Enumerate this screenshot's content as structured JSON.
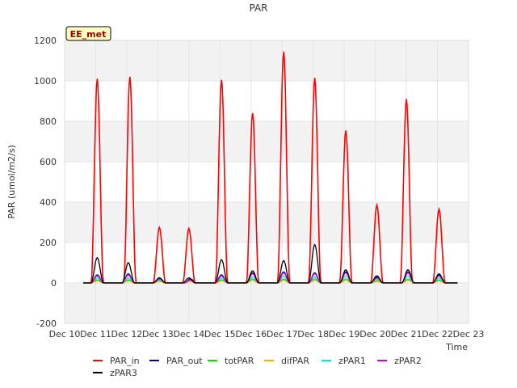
{
  "chart_data": {
    "type": "line",
    "title": "PAR",
    "xlabel": "Time",
    "ylabel": "PAR (umol/m2/s)",
    "annotation": "EE_met",
    "xlim": [
      10,
      23
    ],
    "ylim": [
      -200,
      1200
    ],
    "x_ticks": [
      {
        "value": 10,
        "label": "Dec 10"
      },
      {
        "value": 11,
        "label": "Dec 11"
      },
      {
        "value": 12,
        "label": "Dec 12"
      },
      {
        "value": 13,
        "label": "Dec 13"
      },
      {
        "value": 14,
        "label": "Dec 14"
      },
      {
        "value": 15,
        "label": "Dec 15"
      },
      {
        "value": 16,
        "label": "Dec 16"
      },
      {
        "value": 17,
        "label": "Dec 17"
      },
      {
        "value": 18,
        "label": "Dec 18"
      },
      {
        "value": 19,
        "label": "Dec 19"
      },
      {
        "value": 20,
        "label": "Dec 20"
      },
      {
        "value": 21,
        "label": "Dec 21"
      },
      {
        "value": 22,
        "label": "Dec 22"
      },
      {
        "value": 23,
        "label": "Dec 23"
      }
    ],
    "y_ticks": [
      {
        "value": -200,
        "label": "-200"
      },
      {
        "value": 0,
        "label": "0"
      },
      {
        "value": 200,
        "label": "200"
      },
      {
        "value": 400,
        "label": "400"
      },
      {
        "value": 600,
        "label": "600"
      },
      {
        "value": 800,
        "label": "800"
      },
      {
        "value": 1000,
        "label": "1000"
      },
      {
        "value": 1200,
        "label": "1200"
      }
    ],
    "background_bands": [
      [
        -200,
        0
      ],
      [
        200,
        400
      ],
      [
        600,
        800
      ],
      [
        1000,
        1200
      ]
    ],
    "legend_position": "bottom",
    "series": [
      {
        "name": "PAR_in",
        "color": "#ff0000",
        "peaks": [
          [
            11.05,
            1010
          ],
          [
            12.1,
            1020
          ],
          [
            13.05,
            275
          ],
          [
            14.0,
            270
          ],
          [
            15.05,
            1005
          ],
          [
            16.05,
            840
          ],
          [
            17.05,
            1145
          ],
          [
            18.05,
            1015
          ],
          [
            19.05,
            755
          ],
          [
            20.05,
            385
          ],
          [
            21.0,
            910
          ],
          [
            22.05,
            365
          ]
        ]
      },
      {
        "name": "PAR_out",
        "color": "#00008b",
        "peaks": [
          [
            11.05,
            40
          ],
          [
            12.05,
            45
          ],
          [
            13.05,
            25
          ],
          [
            14.05,
            20
          ],
          [
            15.05,
            40
          ],
          [
            16.05,
            50
          ],
          [
            17.05,
            55
          ],
          [
            18.05,
            50
          ],
          [
            19.05,
            55
          ],
          [
            20.05,
            30
          ],
          [
            21.05,
            55
          ],
          [
            22.05,
            40
          ]
        ]
      },
      {
        "name": "totPAR",
        "color": "#00dd00",
        "peaks": [
          [
            11.05,
            15
          ],
          [
            12.05,
            15
          ],
          [
            13.05,
            10
          ],
          [
            14.05,
            10
          ],
          [
            15.05,
            15
          ],
          [
            16.05,
            20
          ],
          [
            17.05,
            20
          ],
          [
            18.05,
            20
          ],
          [
            19.05,
            20
          ],
          [
            20.05,
            12
          ],
          [
            21.05,
            20
          ],
          [
            22.05,
            15
          ]
        ]
      },
      {
        "name": "difPAR",
        "color": "#ffa500",
        "peaks": [
          [
            11.05,
            10
          ],
          [
            12.05,
            10
          ],
          [
            13.05,
            8
          ],
          [
            14.05,
            8
          ],
          [
            15.05,
            10
          ],
          [
            16.05,
            12
          ],
          [
            17.05,
            12
          ],
          [
            18.05,
            12
          ],
          [
            19.05,
            12
          ],
          [
            20.05,
            8
          ],
          [
            21.05,
            12
          ],
          [
            22.05,
            10
          ]
        ]
      },
      {
        "name": "zPAR1",
        "color": "#00e5ee",
        "peaks": [
          [
            11.05,
            25
          ],
          [
            12.05,
            25
          ],
          [
            13.05,
            15
          ],
          [
            14.05,
            15
          ],
          [
            15.05,
            25
          ],
          [
            16.05,
            30
          ],
          [
            17.05,
            35
          ],
          [
            18.05,
            30
          ],
          [
            19.05,
            35
          ],
          [
            20.05,
            20
          ],
          [
            21.05,
            35
          ],
          [
            22.05,
            25
          ]
        ]
      },
      {
        "name": "zPAR2",
        "color": "#cc00cc",
        "peaks": [
          [
            11.05,
            35
          ],
          [
            12.05,
            40
          ],
          [
            13.05,
            20
          ],
          [
            14.05,
            15
          ],
          [
            15.05,
            35
          ],
          [
            16.05,
            45
          ],
          [
            17.05,
            50
          ],
          [
            18.05,
            45
          ],
          [
            19.05,
            50
          ],
          [
            20.05,
            25
          ],
          [
            21.05,
            50
          ],
          [
            22.05,
            35
          ]
        ]
      },
      {
        "name": "zPAR3",
        "color": "#000000",
        "peaks": [
          [
            11.05,
            125
          ],
          [
            12.05,
            100
          ],
          [
            13.05,
            25
          ],
          [
            14.0,
            25
          ],
          [
            15.05,
            115
          ],
          [
            16.05,
            60
          ],
          [
            17.05,
            110
          ],
          [
            18.05,
            190
          ],
          [
            19.05,
            65
          ],
          [
            20.05,
            35
          ],
          [
            21.05,
            65
          ],
          [
            22.05,
            45
          ]
        ]
      }
    ]
  }
}
